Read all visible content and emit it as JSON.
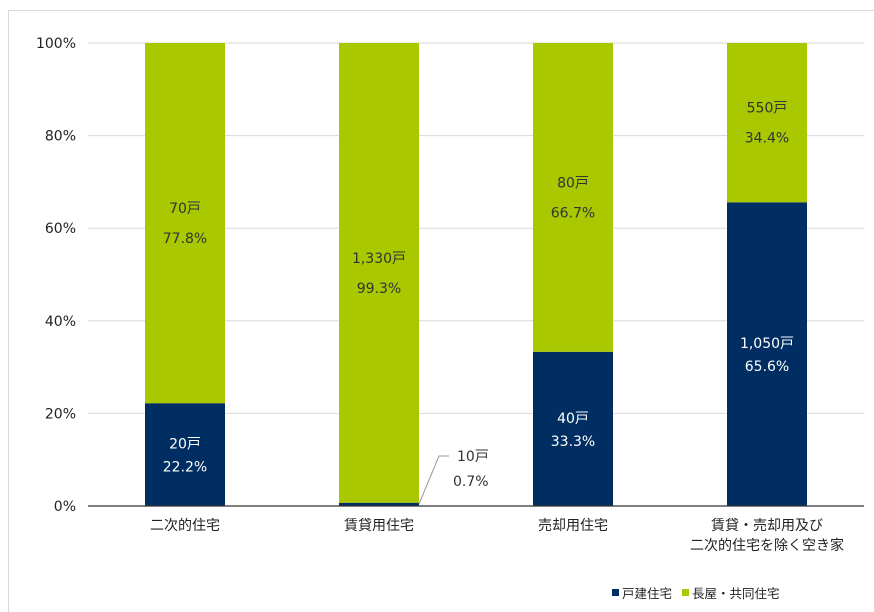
{
  "chart_data": {
    "type": "bar",
    "stacked": true,
    "percent": true,
    "categories": [
      [
        "二次的住宅"
      ],
      [
        "賃貸用住宅"
      ],
      [
        "売却用住宅"
      ],
      [
        "賃貸・売却用及び",
        "二次的住宅を除く空き家"
      ]
    ],
    "series": [
      {
        "name": "戸建住宅",
        "color": "#002d62",
        "values": [
          22.2,
          0.7,
          33.3,
          65.6
        ],
        "counts": [
          "20戸",
          "10戸",
          "40戸",
          "1,050戸"
        ],
        "percent_labels": [
          "22.2%",
          "0.7%",
          "33.3%",
          "65.6%"
        ]
      },
      {
        "name": "長屋・共同住宅",
        "color": "#a9c800",
        "values": [
          77.8,
          99.3,
          66.7,
          34.4
        ],
        "counts": [
          "70戸",
          "1,330戸",
          "80戸",
          "550戸"
        ],
        "percent_labels": [
          "77.8%",
          "99.3%",
          "66.7%",
          "34.4%"
        ]
      }
    ],
    "ylim": [
      0,
      100
    ],
    "yticks": [
      "0%",
      "20%",
      "40%",
      "60%",
      "80%",
      "100%"
    ],
    "grid": true,
    "legend_position": "bottom-right"
  }
}
